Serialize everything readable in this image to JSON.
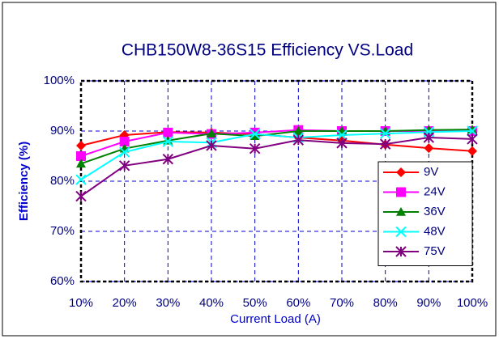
{
  "chart_data": {
    "type": "line",
    "title": "CHB150W8-36S15 Efficiency VS.Load",
    "x_label": "Current Load (A)",
    "y_label": "Efficiency (%)",
    "categories": [
      "10%",
      "20%",
      "30%",
      "40%",
      "50%",
      "60%",
      "70%",
      "80%",
      "90%",
      "100%"
    ],
    "series": [
      {
        "name": "9V",
        "color": "#ff0000",
        "marker": "diamond",
        "values": [
          87.1,
          89.2,
          89.8,
          89.7,
          89.4,
          88.7,
          88.1,
          87.3,
          86.6,
          86.0
        ]
      },
      {
        "name": "24V",
        "color": "#ff00ff",
        "marker": "square",
        "values": [
          85.0,
          87.9,
          89.7,
          89.4,
          89.7,
          90.2,
          90.0,
          90.0,
          90.0,
          90.0
        ]
      },
      {
        "name": "36V",
        "color": "#008000",
        "marker": "triangle",
        "values": [
          83.5,
          86.5,
          88.1,
          89.5,
          89.0,
          90.0,
          90.0,
          90.0,
          90.2,
          90.3
        ]
      },
      {
        "name": "48V",
        "color": "#00ffff",
        "marker": "x",
        "values": [
          80.3,
          85.8,
          87.9,
          87.7,
          89.4,
          88.7,
          89.2,
          89.5,
          89.8,
          90.0
        ]
      },
      {
        "name": "75V",
        "color": "#800080",
        "marker": "star",
        "values": [
          77.0,
          83.1,
          84.4,
          87.1,
          86.5,
          88.2,
          87.6,
          87.4,
          88.7,
          88.4
        ]
      }
    ],
    "ylim": [
      60,
      100
    ],
    "yticks": [
      {
        "value": 60,
        "label": "60%"
      },
      {
        "value": 70,
        "label": "70%"
      },
      {
        "value": 80,
        "label": "80%"
      },
      {
        "value": 90,
        "label": "90%"
      },
      {
        "value": 100,
        "label": "100%"
      }
    ],
    "grid": true,
    "legend": "right"
  }
}
